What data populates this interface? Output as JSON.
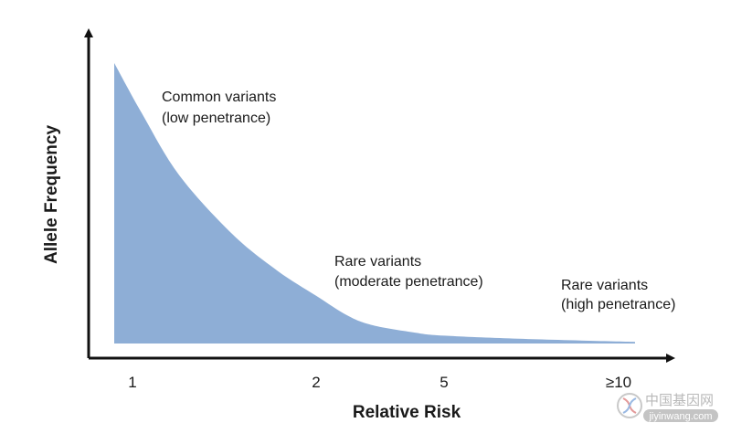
{
  "chart_data": {
    "type": "area",
    "title": "",
    "xlabel": "Relative Risk",
    "ylabel": "Allele Frequency",
    "tick_labels": [
      "1",
      "2",
      "5",
      "≥10"
    ],
    "x": [
      1,
      1.1,
      1.25,
      1.5,
      1.75,
      2,
      2.5,
      3,
      4,
      5,
      7,
      10
    ],
    "values": [
      1.0,
      0.82,
      0.6,
      0.39,
      0.26,
      0.17,
      0.1,
      0.065,
      0.04,
      0.028,
      0.015,
      0.006
    ],
    "ylim": [
      0,
      1
    ],
    "grid": false,
    "legend": "none",
    "fill_color": "#8eaed6",
    "annotations": [
      {
        "line1": "Common variants",
        "line2": "(low penetrance)"
      },
      {
        "line1": "Rare variants",
        "line2": "(moderate penetrance)"
      },
      {
        "line1": "Rare variants",
        "line2": "(high penetrance)"
      }
    ]
  },
  "watermark": {
    "text_cn": "中国基因网",
    "url": "jiyinwang.com",
    "icon": "dna-logo-icon"
  }
}
